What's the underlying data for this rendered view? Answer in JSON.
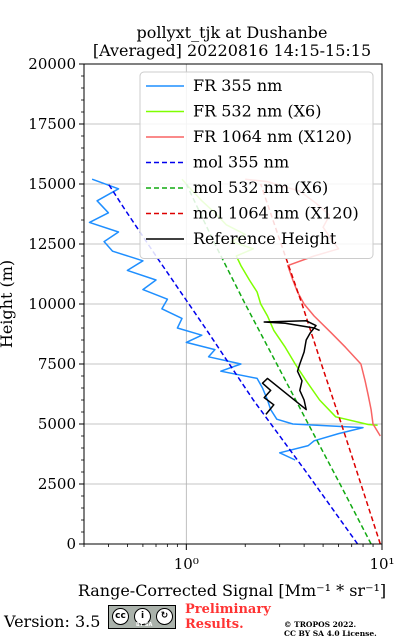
{
  "chart_data": {
    "type": "line",
    "title_line1": "pollyxt_tjk at Dushanbe",
    "title_line2": "[Averaged] 20220816 14:15-15:15",
    "xlabel": "Range-Corrected Signal [Mm⁻¹ * sr⁻¹]",
    "ylabel": "Height (m)",
    "xscale": "log",
    "xlim": [
      0.3,
      10
    ],
    "ylim": [
      0,
      20000
    ],
    "xticks": [
      {
        "value": 1,
        "label": "10⁰"
      },
      {
        "value": 10,
        "label": "10¹"
      }
    ],
    "yticks": [
      0,
      2500,
      5000,
      7500,
      10000,
      12500,
      15000,
      17500,
      20000
    ],
    "grid": true,
    "legend_position": "top-right",
    "series": [
      {
        "name": "FR 355 nm",
        "style": "solid",
        "color": "#1f8fff",
        "points": [
          [
            3.6,
            3500
          ],
          [
            3.0,
            3800
          ],
          [
            4.2,
            4100
          ],
          [
            4.5,
            4300
          ],
          [
            6.0,
            4600
          ],
          [
            8.0,
            4850
          ],
          [
            3.5,
            5000
          ],
          [
            2.9,
            5200
          ],
          [
            2.7,
            5600
          ],
          [
            2.6,
            6000
          ],
          [
            2.45,
            6500
          ],
          [
            2.3,
            6900
          ],
          [
            1.5,
            7200
          ],
          [
            1.9,
            7500
          ],
          [
            1.3,
            7800
          ],
          [
            1.4,
            8100
          ],
          [
            1.0,
            8400
          ],
          [
            1.2,
            8700
          ],
          [
            0.9,
            9000
          ],
          [
            0.95,
            9400
          ],
          [
            0.75,
            9800
          ],
          [
            0.8,
            10200
          ],
          [
            0.6,
            10600
          ],
          [
            0.7,
            11000
          ],
          [
            0.5,
            11400
          ],
          [
            0.6,
            11800
          ],
          [
            0.42,
            12200
          ],
          [
            0.38,
            12600
          ],
          [
            0.45,
            13000
          ],
          [
            0.32,
            13400
          ],
          [
            0.4,
            13800
          ],
          [
            0.35,
            14300
          ],
          [
            0.45,
            14800
          ],
          [
            0.33,
            15200
          ]
        ]
      },
      {
        "name": "FR 532 nm (X6)",
        "style": "solid",
        "color": "#7fff00",
        "points": [
          [
            9.5,
            4950
          ],
          [
            8.5,
            4980
          ],
          [
            5.8,
            5300
          ],
          [
            4.8,
            6000
          ],
          [
            4.1,
            6800
          ],
          [
            3.6,
            7500
          ],
          [
            3.2,
            8200
          ],
          [
            2.8,
            8900
          ],
          [
            2.6,
            9500
          ],
          [
            2.4,
            10000
          ],
          [
            2.3,
            10500
          ],
          [
            2.1,
            11000
          ],
          [
            1.9,
            11600
          ],
          [
            1.8,
            12000
          ],
          [
            2.2,
            12300
          ],
          [
            1.7,
            12600
          ],
          [
            2.0,
            12900
          ],
          [
            1.6,
            13300
          ],
          [
            1.4,
            13800
          ],
          [
            1.2,
            14300
          ],
          [
            1.05,
            14800
          ],
          [
            0.95,
            15200
          ]
        ]
      },
      {
        "name": "FR 1064 nm (X120)",
        "style": "solid",
        "color": "#f86464",
        "points": [
          [
            9.8,
            4500
          ],
          [
            9.0,
            5000
          ],
          [
            8.8,
            5600
          ],
          [
            8.5,
            6200
          ],
          [
            8.2,
            6800
          ],
          [
            7.8,
            7500
          ],
          [
            6.5,
            8200
          ],
          [
            5.5,
            8800
          ],
          [
            4.5,
            9500
          ],
          [
            4.0,
            10000
          ],
          [
            3.7,
            10500
          ],
          [
            3.5,
            11000
          ],
          [
            3.3,
            11600
          ],
          [
            4.5,
            12000
          ],
          [
            6.0,
            12300
          ],
          [
            5.5,
            12700
          ],
          [
            5.0,
            13200
          ],
          [
            5.4,
            13700
          ],
          [
            4.6,
            14200
          ],
          [
            3.8,
            14700
          ],
          [
            2.6,
            15100
          ],
          [
            2.0,
            15200
          ]
        ]
      },
      {
        "name": "mol 355 nm",
        "style": "dashed",
        "color": "#0000ee",
        "points": [
          [
            7.5,
            0
          ],
          [
            4.1,
            3000
          ],
          [
            2.2,
            6000
          ],
          [
            1.25,
            9000
          ],
          [
            0.7,
            12000
          ],
          [
            0.48,
            14000
          ],
          [
            0.4,
            15000
          ]
        ]
      },
      {
        "name": "mol 532 nm (X6)",
        "style": "dashed",
        "color": "#11aa11",
        "points": [
          [
            8.8,
            0
          ],
          [
            6.1,
            2500
          ],
          [
            4.2,
            5000
          ],
          [
            2.9,
            7500
          ],
          [
            2.0,
            10000
          ],
          [
            1.4,
            12500
          ],
          [
            1.0,
            15000
          ]
        ]
      },
      {
        "name": "mol 1064 nm (X120)",
        "style": "dashed",
        "color": "#dd0000",
        "points": [
          [
            9.8,
            0
          ],
          [
            7.8,
            2500
          ],
          [
            6.2,
            5000
          ],
          [
            4.9,
            7500
          ],
          [
            3.9,
            10000
          ],
          [
            3.05,
            12500
          ],
          [
            2.4,
            15000
          ]
        ]
      },
      {
        "name": "Reference Height",
        "style": "solid",
        "color": "#000000",
        "points": [
          [
            2.55,
            5400
          ],
          [
            2.8,
            5800
          ],
          [
            2.5,
            6100
          ],
          [
            2.7,
            6400
          ],
          [
            2.45,
            6700
          ],
          [
            2.6,
            6900
          ],
          [
            4.1,
            5600
          ],
          [
            4.0,
            6000
          ],
          [
            3.8,
            6400
          ],
          [
            3.9,
            6800
          ],
          [
            3.7,
            7200
          ],
          [
            3.8,
            7500
          ],
          [
            4.0,
            8000
          ],
          [
            4.1,
            8500
          ],
          [
            4.3,
            8800
          ],
          [
            4.6,
            9100
          ],
          [
            4.1,
            9300
          ],
          [
            2.5,
            9250
          ],
          [
            3.2,
            9200
          ],
          [
            4.5,
            9000
          ],
          [
            4.8,
            8900
          ]
        ]
      }
    ]
  },
  "footer": {
    "version": "Version: 3.5",
    "license_badge": [
      "cc",
      "by",
      "sa"
    ],
    "badge_text": "BY  SA",
    "preliminary_line1": "Preliminary",
    "preliminary_line2": "Results.",
    "copyright_line1": "© TROPOS 2022.",
    "copyright_line2": "CC BY SA 4.0 License."
  }
}
